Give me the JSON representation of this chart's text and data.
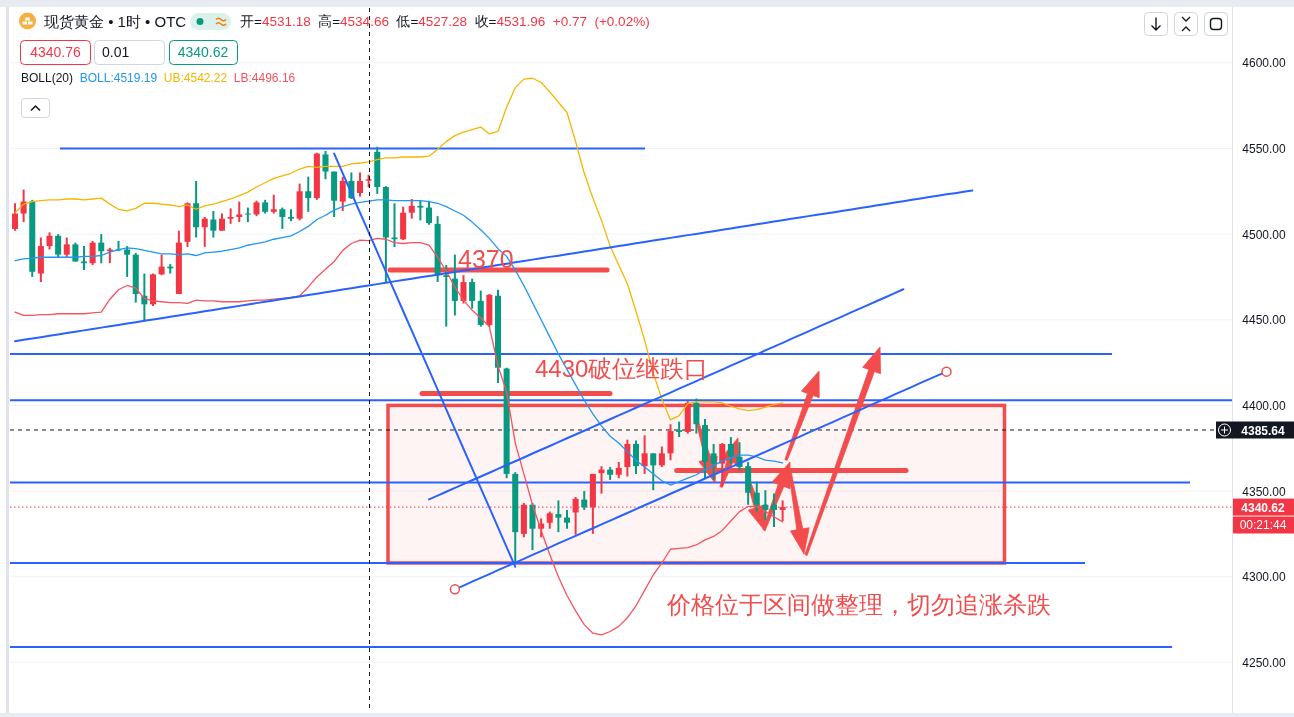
{
  "chart_data": {
    "type": "candlestick",
    "title": "现货黄金 • 1时 • OTC",
    "subtitle": "开=4531.18 高=4534.66 低=4527.28 收=4531.96 +0.77 (+0.02%)",
    "categories": [
      null,
      null,
      null,
      null,
      null,
      null,
      null,
      null,
      null,
      null,
      null,
      null,
      null,
      null,
      null,
      null,
      null,
      null,
      null,
      null,
      null,
      null,
      null,
      null,
      null,
      null,
      null,
      null,
      null,
      null,
      null,
      null,
      null,
      null,
      null,
      null,
      null,
      null,
      null,
      null,
      null,
      null,
      null,
      null,
      null,
      null,
      null,
      null,
      null,
      null,
      null,
      null,
      null,
      null,
      null,
      null,
      null,
      null,
      null,
      null,
      null,
      null,
      null,
      null,
      null,
      null,
      null,
      null,
      null,
      null,
      null,
      null,
      null,
      null,
      null,
      null,
      null,
      null,
      null,
      null,
      null,
      null,
      null,
      null,
      null,
      null,
      null,
      null,
      null,
      null,
      null,
      null,
      null,
      null,
      null,
      null,
      null,
      null,
      null,
      null,
      null,
      null,
      null,
      null,
      null,
      null,
      null,
      null,
      null,
      null,
      null,
      null,
      null,
      null,
      null,
      null,
      null,
      null,
      null,
      null,
      null,
      null,
      null,
      null,
      null,
      null,
      null,
      null,
      null,
      null,
      null,
      null,
      null,
      null,
      null,
      null,
      null,
      null,
      null,
      null,
      null,
      null
    ],
    "ohlc": [
      [
        4503,
        4518,
        4502,
        4512
      ],
      [
        4512,
        4526,
        4507,
        4519
      ],
      [
        4519,
        4520,
        4475,
        4478
      ],
      [
        4477,
        4498,
        4472,
        4493
      ],
      [
        4493,
        4501,
        4491,
        4499
      ],
      [
        4499,
        4500,
        4486,
        4488
      ],
      [
        4488,
        4498,
        4486,
        4494
      ],
      [
        4494,
        4495,
        4484,
        4484
      ],
      [
        4484,
        4493,
        4479,
        4483
      ],
      [
        4483,
        4496,
        4482,
        4495
      ],
      [
        4495,
        4500,
        4483,
        4490
      ],
      [
        4490,
        4492,
        4483,
        4491
      ],
      [
        4491,
        4496,
        4490,
        4490.5
      ],
      [
        4491,
        4493,
        4475,
        4488
      ],
      [
        4488,
        4489,
        4460,
        4465
      ],
      [
        4464,
        4477,
        4449,
        4459
      ],
      [
        4459,
        4477,
        4458,
        4476.5
      ],
      [
        4476.5,
        4488,
        4476,
        4481
      ],
      [
        4481,
        4482.5,
        4477,
        4480
      ],
      [
        4465,
        4502,
        4465,
        4495
      ],
      [
        4495.5,
        4518.5,
        4492.5,
        4518
      ],
      [
        4518,
        4531,
        4498,
        4504
      ],
      [
        4504,
        4510,
        4492.5,
        4509
      ],
      [
        4508.5,
        4513.5,
        4498,
        4502
      ],
      [
        4502,
        4512,
        4502,
        4509
      ],
      [
        4509,
        4515,
        4506,
        4510
      ],
      [
        4510,
        4519,
        4507,
        4511.5
      ],
      [
        4512,
        4515.5,
        4507,
        4511.5
      ],
      [
        4511.5,
        4519.5,
        4510.5,
        4518.5
      ],
      [
        4518.5,
        4520,
        4512,
        4513
      ],
      [
        4513,
        4523,
        4512,
        4514.5
      ],
      [
        4514.5,
        4515.5,
        4503,
        4510
      ],
      [
        4510,
        4514.5,
        4507.5,
        4509
      ],
      [
        4509,
        4529.5,
        4508,
        4525
      ],
      [
        4525,
        4533.5,
        4513,
        4521
      ],
      [
        4521,
        4547.5,
        4520,
        4547
      ],
      [
        4546.5,
        4548.5,
        4532,
        4536.5
      ],
      [
        4536.5,
        4536.5,
        4510,
        4519.5
      ],
      [
        4519,
        4533.5,
        4513.5,
        4531
      ],
      [
        4531,
        4536,
        4520.5,
        4521
      ],
      [
        4524,
        4536,
        4522,
        4531
      ],
      [
        4531.18,
        4534.66,
        4527.28,
        4531.96
      ],
      [
        4548,
        4551,
        4523.5,
        4527.5
      ],
      [
        4527.5,
        4528,
        4472,
        4498
      ],
      [
        4498,
        4518,
        4492.5,
        4497
      ],
      [
        4497,
        4516,
        4496.5,
        4512.5
      ],
      [
        4512.5,
        4520.5,
        4509,
        4516.5
      ],
      [
        4516.5,
        4519.5,
        4508,
        4515.5
      ],
      [
        4515.5,
        4519.5,
        4505.5,
        4506.5
      ],
      [
        4506,
        4510.5,
        4472,
        4476
      ],
      [
        4476,
        4482,
        4446,
        4475
      ],
      [
        4474,
        4488,
        4452.5,
        4461
      ],
      [
        4461,
        4476,
        4459.5,
        4472
      ],
      [
        4472,
        4474,
        4456.5,
        4461
      ],
      [
        4461,
        4467,
        4446,
        4447
      ],
      [
        4447,
        4465,
        4446,
        4464.5
      ],
      [
        4464,
        4467.5,
        4413,
        4422
      ],
      [
        4421.5,
        4422,
        4357.5,
        4360
      ],
      [
        4360,
        4361,
        4307.3,
        4326
      ],
      [
        4325,
        4343,
        4323,
        4342
      ],
      [
        4342,
        4343,
        4315.5,
        4328
      ],
      [
        4328,
        4334,
        4323,
        4331
      ],
      [
        4331.5,
        4338,
        4328,
        4337
      ],
      [
        4336.5,
        4344.5,
        4326,
        4334.5
      ],
      [
        4334.5,
        4339,
        4328,
        4331.5
      ],
      [
        4337.5,
        4346.5,
        4324.5,
        4345.5
      ],
      [
        4345,
        4350,
        4339,
        4340.5
      ],
      [
        4340.5,
        4360,
        4325,
        4360
      ],
      [
        4360.5,
        4364.5,
        4348.5,
        4362.5
      ],
      [
        4362.5,
        4364,
        4356.5,
        4359.5
      ],
      [
        4359.5,
        4367,
        4357.5,
        4363.5
      ],
      [
        4364,
        4380,
        4358.5,
        4377.5
      ],
      [
        4377.5,
        4379.5,
        4360,
        4364.5
      ],
      [
        4364.5,
        4382.5,
        4360,
        4372
      ],
      [
        4372,
        4372,
        4350.5,
        4365
      ],
      [
        4365,
        4376,
        4364,
        4372
      ],
      [
        4372,
        4389,
        4368,
        4385
      ],
      [
        4385.5,
        4390.5,
        4381.5,
        4384.5
      ],
      [
        4384.5,
        4402.5,
        4383.5,
        4401.5
      ],
      [
        4401.5,
        4404,
        4383.5,
        4389
      ],
      [
        4388.5,
        4392,
        4357,
        4367
      ],
      [
        4372,
        4377.5,
        4356.5,
        4366
      ],
      [
        4366,
        4378,
        4352.5,
        4377.5
      ],
      [
        4377.5,
        4381.5,
        4366,
        4370
      ],
      [
        4370,
        4378.5,
        4362,
        4364
      ],
      [
        4364.5,
        4367,
        4342,
        4349
      ],
      [
        4349,
        4355.5,
        4338,
        4342
      ],
      [
        4342,
        4350.5,
        4333,
        4339
      ],
      [
        4342,
        4348.5,
        4329,
        4339
      ],
      [
        4339,
        4344.5,
        4332.5,
        4340.62
      ],
      null,
      null,
      null,
      null,
      null,
      null,
      null,
      null,
      null,
      null,
      null,
      null,
      null,
      null,
      null,
      null,
      null,
      null,
      null,
      null,
      null,
      null,
      null,
      null,
      null,
      null,
      null,
      null,
      null,
      null,
      null,
      null,
      null,
      null,
      null,
      null,
      null,
      null,
      null,
      null,
      null,
      null,
      null,
      null,
      null,
      null,
      null,
      null,
      null,
      null,
      null,
      null
    ],
    "colors": [
      "#f23645",
      "#f23645",
      "#089981",
      "#f23645",
      "#f23645",
      "#089981",
      "#f23645",
      "#089981",
      "#089981",
      "#f23645",
      "#089981",
      "#f23645",
      "#089981",
      "#089981",
      "#089981",
      "#089981",
      "#f23645",
      "#f23645",
      "#089981",
      "#f23645",
      "#f23645",
      "#089981",
      "#f23645",
      "#089981",
      "#f23645",
      "#f23645",
      "#f23645",
      "#089981",
      "#f23645",
      "#089981",
      "#f23645",
      "#089981",
      "#089981",
      "#f23645",
      "#089981",
      "#f23645",
      "#089981",
      "#089981",
      "#f23645",
      "#089981",
      "#f23645",
      "#f23645",
      "#089981",
      "#089981",
      "#089981",
      "#f23645",
      "#f23645",
      "#089981",
      "#089981",
      "#089981",
      "#089981",
      "#089981",
      "#f23645",
      "#089981",
      "#089981",
      "#f23645",
      "#089981",
      "#089981",
      "#089981",
      "#f23645",
      "#089981",
      "#f23645",
      "#f23645",
      "#089981",
      "#089981",
      "#f23645",
      "#089981",
      "#f23645",
      "#f23645",
      "#089981",
      "#f23645",
      "#f23645",
      "#089981",
      "#f23645",
      "#089981",
      "#f23645",
      "#f23645",
      "#089981",
      "#f23645",
      "#089981",
      "#089981",
      "#089981",
      "#f23645",
      "#089981",
      "#089981",
      "#089981",
      "#089981",
      "#089981",
      "#089981",
      "#f23645",
      null,
      null,
      null,
      null,
      null,
      null,
      null,
      null,
      null,
      null,
      null,
      null,
      null,
      null,
      null,
      null,
      null,
      null,
      null,
      null,
      null,
      null,
      null,
      null,
      null,
      null,
      null,
      null,
      null,
      null,
      null,
      null,
      null,
      null,
      null,
      null,
      null,
      null,
      null,
      null,
      null,
      null,
      null,
      null,
      null,
      null,
      null,
      null,
      null,
      null,
      null,
      null
    ],
    "series": [
      {
        "type": "line",
        "name": "BOLL:4519.19",
        "color": "#2196f3",
        "values": [
          4484.5,
          4485.5,
          4486,
          4486.5,
          4486.5,
          4486.5,
          4486.5,
          4486.5,
          4487,
          4487,
          4487.5,
          4489.5,
          4491,
          4492,
          4491.5,
          4490.5,
          4489.5,
          4488.5,
          4488.5,
          4488,
          4488.5,
          4487.5,
          4489,
          4489.5,
          4490,
          4491,
          4492,
          4493.5,
          4494.5,
          4495.5,
          4497,
          4498,
          4499,
          4501.5,
          4504.5,
          4508.5,
          4511,
          4514,
          4516,
          4517.5,
          4518.5,
          4519.19,
          4520,
          4520,
          4519.5,
          4519.5,
          4519.5,
          4519.5,
          4519,
          4518,
          4516,
          4513.5,
          4511,
          4507,
          4502.5,
          4497.5,
          4491.5,
          4487,
          4479,
          4470,
          4460,
          4450,
          4440,
          4430,
          4421,
          4412,
          4403,
          4395,
          4388,
          4382,
          4378,
          4373,
          4368,
          4364,
          4360,
          4356,
          4353.5,
          4355.5,
          4357.5,
          4359.5,
          4362.5,
          4365,
          4367.5,
          4369.5,
          4371,
          4371,
          4370,
          4368,
          4367.5,
          4366.5,
          null,
          null,
          null,
          null,
          null,
          null,
          null,
          null,
          null,
          null,
          null,
          null,
          null,
          null,
          null,
          null,
          null,
          null,
          null,
          null,
          null,
          null,
          null,
          null,
          null,
          null,
          null,
          null,
          null,
          null,
          null,
          null,
          null,
          null,
          null,
          null,
          null,
          null,
          null,
          null,
          null,
          null,
          null,
          null,
          null,
          null,
          null,
          null,
          null,
          null,
          null,
          null
        ]
      },
      {
        "type": "line",
        "name": "UB:4542.22",
        "color": "#f7b500",
        "values": [
          4512.5,
          4517.5,
          4519,
          4519.5,
          4520,
          4520,
          4520.5,
          4520.5,
          4520,
          4520.5,
          4521,
          4517.5,
          4514.5,
          4513.5,
          4515,
          4518,
          4518,
          4517.5,
          4517,
          4516,
          4517,
          4514.5,
          4516.5,
          4517.5,
          4519,
          4520.5,
          4522.5,
          4524.5,
          4527.5,
          4530,
          4532.5,
          4534,
          4535.5,
          4538,
          4539.5,
          4539,
          4539.5,
          4539.5,
          4539.5,
          4541,
          4541.5,
          4542.22,
          4543.5,
          4544.5,
          4544.5,
          4545,
          4545,
          4545,
          4545.5,
          4549.5,
          4554,
          4557.5,
          4559.5,
          4561,
          4562.5,
          4558.5,
          4560,
          4574,
          4585.5,
          4590.5,
          4591,
          4588.5,
          4583,
          4577,
          4571,
          4554,
          4535.5,
          4521,
          4508,
          4493,
          4482,
          4471,
          4455,
          4438,
          4419,
          4403.5,
          4391.5,
          4394,
          4401,
          4402,
          4402,
          4402,
          4401.5,
          4399.5,
          4398,
          4397,
          4397.5,
          4399,
          4400.5,
          4401.5,
          null,
          null,
          null,
          null,
          null,
          null,
          null,
          null,
          null,
          null,
          null,
          null,
          null,
          null,
          null,
          null,
          null,
          null,
          null,
          null,
          null,
          null,
          null,
          null,
          null,
          null,
          null,
          null,
          null,
          null,
          null,
          null,
          null,
          null,
          null,
          null,
          null,
          null,
          null,
          null,
          null,
          null,
          null,
          null,
          null,
          null,
          null,
          null,
          null,
          null,
          null,
          null
        ]
      },
      {
        "type": "line",
        "name": "LB:4496.16",
        "color": "#f7525f",
        "values": [
          4454.5,
          4452.5,
          4452.5,
          4453,
          4453,
          4453.5,
          4453.5,
          4453.5,
          4453.5,
          4454,
          4454.5,
          4462,
          4467.5,
          4470,
          4468.5,
          4462.5,
          4461,
          4460.5,
          4460,
          4460,
          4459.5,
          4461.5,
          4461,
          4461,
          4460.5,
          4460.5,
          4460.5,
          4461,
          4461.5,
          4461.5,
          4462,
          4462.5,
          4463,
          4464,
          4469,
          4475,
          4479.5,
          4484,
          4490.5,
          4494.5,
          4496.5,
          4496.16,
          4497.5,
          4497,
          4495,
          4494.5,
          4495,
          4495,
          4493.5,
          4486.5,
          4478.5,
          4469,
          4461.5,
          4455.5,
          4451,
          4446,
          4423,
          4408,
          4378,
          4360,
          4342,
          4327,
          4313,
          4300,
          4289,
          4280,
          4272,
          4267,
          4266,
          4268,
          4271,
          4276,
          4283,
          4292,
          4301,
          4308,
          4316,
          4316.5,
          4317,
          4318.5,
          4321.5,
          4323.5,
          4327,
          4332.5,
          4338,
          4341,
          4341,
          4338,
          4335,
          4332,
          null,
          null,
          null,
          null,
          null,
          null,
          null,
          null,
          null,
          null,
          null,
          null,
          null,
          null,
          null,
          null,
          null,
          null,
          null,
          null,
          null,
          null,
          null,
          null,
          null,
          null,
          null,
          null,
          null,
          null,
          null,
          null,
          null,
          null,
          null,
          null,
          null,
          null,
          null,
          null,
          null,
          null,
          null,
          null,
          null,
          null,
          null,
          null,
          null,
          null,
          null,
          null
        ]
      },
      {
        "type": "line",
        "color": "#2962ff",
        "values": [
          4437.5,
          4438.3,
          4439,
          4439.8,
          4440.6,
          4441.4,
          4442.2,
          4443,
          4443.8,
          4444.6,
          4445.4,
          4446.2,
          4447,
          4447.8,
          4448.6,
          4449.4,
          4450.2,
          4450.9,
          4451.7,
          4452.5,
          4453.3,
          4454.1,
          4454.9,
          4455.7,
          4456.5,
          4457.3,
          4458.1,
          4458.9,
          4459.7,
          4460.5,
          4461.3,
          4462.1,
          4462.9,
          4463.6,
          4464.4,
          4465.2,
          4466,
          4466.8,
          4467.6,
          4468.4,
          4469.2,
          4470,
          4470.8,
          4471.6,
          4472.4,
          4473.2,
          4474,
          4474.8,
          4475.5,
          4476.3,
          4477.1,
          4477.9,
          4478.7,
          4479.5,
          4480.3,
          4481.1,
          4481.9,
          4482.7,
          4483.5,
          4484.3,
          4485.1,
          4485.9,
          4486.7,
          4487.4,
          4488.2,
          4489,
          4489.8,
          4490.6,
          4491.4,
          4492.2,
          4493,
          4493.8,
          4494.6,
          4495.4,
          4496.2,
          4497,
          4497.8,
          4498.6,
          4499.4,
          4500.1,
          4500.9,
          4501.7,
          4502.5,
          4503.3,
          4504.1,
          4504.9,
          4505.7,
          4506.5,
          4507.3,
          4508.1,
          4508.9,
          4509.7,
          4510.5,
          4511.3,
          4512,
          4512.8,
          4513.6,
          4514.4,
          4515.2,
          4516,
          4516.8,
          4517.6,
          4518.4,
          4519.2,
          4520,
          4520.8,
          4521.6,
          4522.4,
          4523.2,
          4523.9,
          4524.7,
          4525.5,
          null,
          null,
          null,
          null,
          null,
          null,
          null,
          null,
          null,
          null,
          null,
          null,
          null,
          null,
          null,
          null,
          null,
          null,
          null,
          null,
          null,
          null,
          null,
          null,
          null,
          null,
          null,
          null,
          null,
          null
        ]
      },
      {
        "type": "line",
        "color": "#2962ff",
        "values": [
          null,
          null,
          null,
          null,
          null,
          null,
          null,
          null,
          null,
          null,
          null,
          null,
          null,
          null,
          null,
          null,
          null,
          null,
          null,
          null,
          null,
          null,
          null,
          null,
          null,
          null,
          null,
          null,
          null,
          null,
          null,
          null,
          null,
          null,
          null,
          null,
          null,
          4547,
          4535.5,
          4524,
          4512.5,
          4501.1,
          4489.6,
          4478.1,
          4466.6,
          4455.1,
          4443.6,
          4432.1,
          4420.7,
          4409.2,
          4397.7,
          4386.2,
          4374.7,
          4363.2,
          4351.7,
          4340.3,
          4328.8,
          4317.3,
          4305.8,
          null,
          null,
          null,
          null,
          null,
          null,
          null,
          null,
          null,
          null,
          null,
          null,
          null,
          null,
          null,
          null,
          null,
          null,
          null,
          null,
          null,
          null,
          null,
          null,
          null,
          null,
          null,
          null,
          null,
          null,
          null,
          null,
          null,
          null,
          null,
          null,
          null,
          null,
          null,
          null,
          null,
          null,
          null,
          null,
          null,
          null,
          null,
          null,
          null,
          null,
          null,
          null,
          null,
          null,
          null,
          null,
          null,
          null,
          null,
          null,
          null,
          null,
          null,
          null,
          null,
          null,
          null,
          null,
          null,
          null,
          null,
          null,
          null,
          null,
          null,
          null,
          null,
          null,
          null,
          null,
          null,
          null,
          null
        ]
      },
      {
        "type": "line",
        "color": "#2962ff",
        "values": [
          null,
          null,
          null,
          null,
          null,
          null,
          null,
          null,
          null,
          null,
          null,
          null,
          null,
          null,
          null,
          null,
          null,
          null,
          null,
          null,
          null,
          null,
          null,
          null,
          null,
          null,
          null,
          null,
          null,
          null,
          null,
          null,
          null,
          null,
          null,
          null,
          null,
          null,
          null,
          null,
          null,
          null,
          null,
          null,
          null,
          null,
          null,
          null,
          null,
          null,
          null,
          4292.6,
          4294.8,
          4297.1,
          4299.3,
          4301.5,
          4303.8,
          4306,
          4308.2,
          4310.4,
          4312.7,
          4314.9,
          4317.1,
          4319.4,
          4321.6,
          4323.8,
          4326.1,
          4328.3,
          4330.5,
          4332.7,
          4335,
          4337.2,
          4339.4,
          4341.7,
          4343.9,
          4346.1,
          4348.4,
          4350.6,
          4352.8,
          4355,
          4357.3,
          4359.5,
          4361.7,
          4364,
          4366.2,
          4368.4,
          4370.7,
          4372.9,
          4375.1,
          4377.4,
          4379.6,
          4381.8,
          4384.1,
          4386.3,
          4388.5,
          4390.7,
          4393,
          4395.2,
          4397.4,
          4399.7,
          4401.9,
          4404.1,
          4406.4,
          4408.6,
          4410.8,
          4413.1,
          4415.3,
          4417.5,
          4419.7,
          null,
          null,
          null,
          null,
          null,
          null,
          null,
          null,
          null,
          null,
          null,
          null,
          null,
          null,
          null,
          null,
          null,
          null,
          null,
          null,
          null,
          null,
          null,
          null,
          null,
          null,
          null,
          null,
          null,
          null,
          null,
          null,
          null
        ]
      },
      {
        "type": "line",
        "color": "#2962ff",
        "values": [
          null,
          null,
          null,
          null,
          null,
          null,
          null,
          null,
          null,
          null,
          null,
          null,
          null,
          null,
          null,
          null,
          null,
          null,
          null,
          null,
          null,
          null,
          null,
          null,
          null,
          null,
          null,
          null,
          null,
          null,
          null,
          null,
          null,
          null,
          null,
          null,
          null,
          null,
          null,
          null,
          null,
          null,
          null,
          null,
          null,
          null,
          null,
          null,
          4345.1,
          4347.3,
          4349.6,
          4351.8,
          4354,
          4356.3,
          4358.5,
          4360.7,
          4362.9,
          4365.2,
          4367.4,
          4369.6,
          4371.9,
          4374.1,
          4376.3,
          4378.6,
          4380.8,
          4383,
          4385.2,
          4387.5,
          4389.7,
          4391.9,
          4394.2,
          4396.4,
          4398.6,
          4400.9,
          4403.1,
          4405.3,
          4407.5,
          4409.8,
          4412,
          4414.2,
          4416.5,
          4418.7,
          4420.9,
          4423.2,
          4425.4,
          4427.6,
          4429.8,
          4432.1,
          4434.3,
          4436.5,
          4438.8,
          4441,
          4443.2,
          4445.5,
          4447.7,
          4449.9,
          4452.1,
          4454.4,
          4456.6,
          4458.8,
          4461.1,
          4463.3,
          4465.5,
          4467.8,
          null,
          null,
          null,
          null,
          null,
          null,
          null,
          null,
          null,
          null,
          null,
          null,
          null,
          null,
          null,
          null,
          null,
          null,
          null,
          null,
          null,
          null,
          null,
          null,
          null,
          null,
          null,
          null,
          null,
          null,
          null,
          null,
          null,
          null,
          null,
          null,
          null,
          null
        ]
      },
      {
        "type": "scatter",
        "color": "#f24c4c",
        "marker": "circle",
        "values": [
          null,
          null,
          null,
          null,
          null,
          null,
          null,
          null,
          null,
          null,
          null,
          null,
          null,
          null,
          null,
          null,
          null,
          null,
          null,
          null,
          null,
          null,
          null,
          null,
          null,
          null,
          null,
          null,
          null,
          null,
          null,
          null,
          null,
          null,
          null,
          null,
          null,
          null,
          null,
          null,
          null,
          null,
          null,
          null,
          null,
          null,
          null,
          null,
          null,
          null,
          null,
          4292.6,
          null,
          null,
          null,
          null,
          null,
          null,
          null,
          null,
          null,
          null,
          null,
          null,
          null,
          null,
          null,
          null,
          null,
          null,
          null,
          null,
          null,
          null,
          null,
          null,
          null,
          null,
          null,
          null,
          null,
          null,
          null,
          null,
          null,
          null,
          null,
          null,
          null,
          null,
          null,
          null,
          null,
          null,
          null,
          null,
          null,
          null,
          null,
          null,
          null,
          null,
          null,
          null,
          null,
          null,
          null,
          null,
          4419.7,
          null,
          null,
          null,
          null,
          null,
          null,
          null,
          null,
          null,
          null,
          null,
          null,
          null,
          null,
          null,
          null,
          null,
          null,
          null,
          null,
          null,
          null,
          null,
          null,
          null,
          null,
          null,
          null,
          null,
          null,
          null,
          null,
          null
        ]
      }
    ],
    "ylim": [
      4221,
      4632
    ],
    "yticks": [
      {
        "value": 4250,
        "label": "4250.00"
      },
      {
        "value": 4300,
        "label": "4300.00"
      },
      {
        "value": 4350,
        "label": "4350.00"
      },
      {
        "value": 4400,
        "label": "4400.00"
      },
      {
        "value": 4450,
        "label": "4450.00"
      },
      {
        "value": 4500,
        "label": "4500.00"
      },
      {
        "value": 4550,
        "label": "4550.00"
      },
      {
        "value": 4600,
        "label": "4600.00"
      }
    ],
    "tick_labels": "y",
    "grid": "y",
    "legend": "top left",
    "legend_title": "BOLL(20)",
    "ref_lines": [
      {
        "axis": "y",
        "value": 4385.64,
        "color": "#131722",
        "line_style": "dashed"
      },
      {
        "axis": "y",
        "value": 4340.62,
        "color": "#f23645",
        "line_style": "dotted"
      },
      {
        "axis": "y",
        "value": 4550,
        "color": "#2962ff"
      },
      {
        "axis": "y",
        "value": 4430,
        "color": "#2962ff"
      },
      {
        "axis": "y",
        "value": 4403,
        "color": "#2962ff"
      },
      {
        "axis": "y",
        "value": 4355,
        "color": "#2962ff"
      },
      {
        "axis": "y",
        "value": 4308,
        "color": "#2962ff"
      },
      {
        "axis": "y",
        "value": 4259,
        "color": "#2962ff"
      },
      {
        "axis": "y",
        "value": 4479,
        "color": "#f24c4c"
      },
      {
        "axis": "y",
        "value": 4407,
        "color": "#f24c4c"
      },
      {
        "axis": "y",
        "value": 4362,
        "color": "#f24c4c"
      }
    ],
    "bands": [
      {
        "axis": "y",
        "from": 4308,
        "to": 4400,
        "color": "#f24c4c"
      }
    ],
    "annotations": [
      "4370",
      "4430破位继跌口",
      "价格位于区间做整理，切勿追涨杀跌",
      "4340.76",
      "0.01",
      "4340.62",
      "4385.64",
      "4340.62",
      "00:21:44"
    ]
  }
}
